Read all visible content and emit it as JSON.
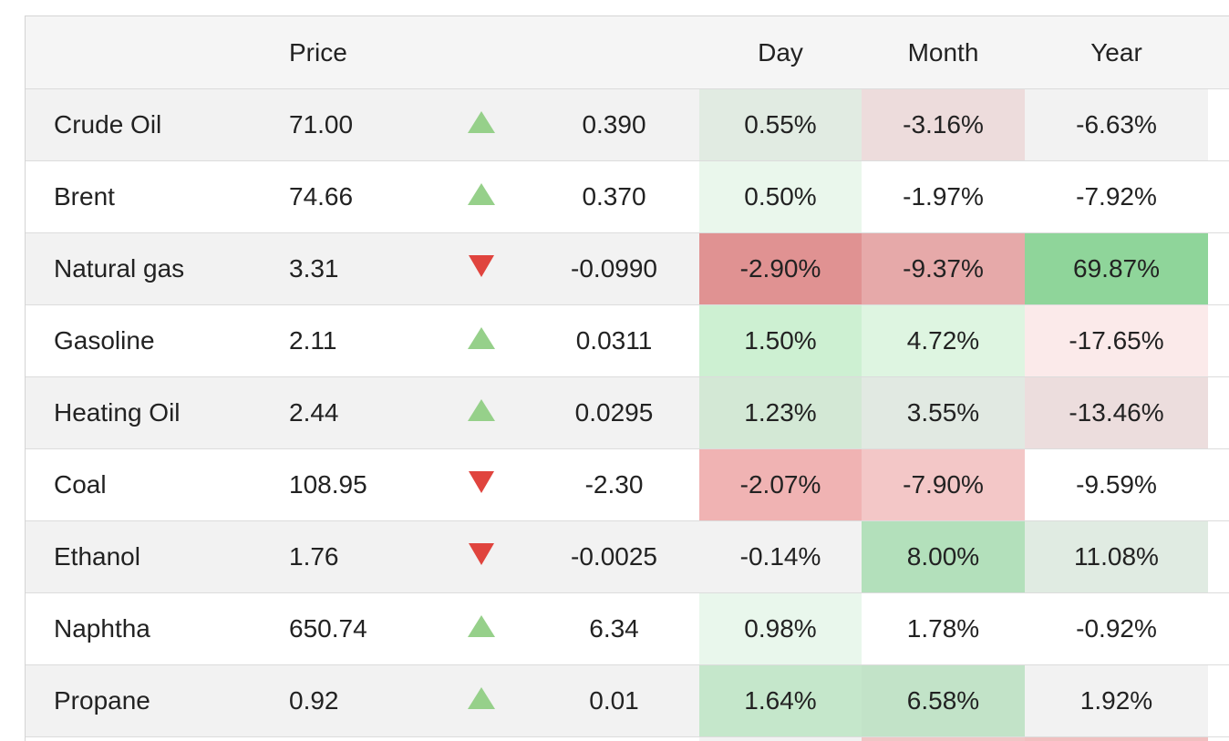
{
  "header": {
    "name": "",
    "price": "Price",
    "arrow": "",
    "change": "",
    "day": "Day",
    "month": "Month",
    "year": "Year"
  },
  "rows": [
    {
      "name": "Crude Oil",
      "price": "71.00",
      "direction": "up",
      "change": "0.390",
      "day": "0.55%",
      "month": "-3.16%",
      "year": "-6.63%",
      "day_bg": "#e1ebe2",
      "month_bg": "#eddcdc",
      "year_bg": "#f2f2f2"
    },
    {
      "name": "Brent",
      "price": "74.66",
      "direction": "up",
      "change": "0.370",
      "day": "0.50%",
      "month": "-1.97%",
      "year": "-7.92%",
      "day_bg": "#eaf7ec",
      "month_bg": "#ffffff",
      "year_bg": "#ffffff"
    },
    {
      "name": "Natural gas",
      "price": "3.31",
      "direction": "down",
      "change": "-0.0990",
      "day": "-2.90%",
      "month": "-9.37%",
      "year": "69.87%",
      "day_bg": "#e09292",
      "month_bg": "#e6a9a9",
      "year_bg": "#8fd59a"
    },
    {
      "name": "Gasoline",
      "price": "2.11",
      "direction": "up",
      "change": "0.0311",
      "day": "1.50%",
      "month": "4.72%",
      "year": "-17.65%",
      "day_bg": "#cdf0d2",
      "month_bg": "#def5e1",
      "year_bg": "#fbeaea"
    },
    {
      "name": "Heating Oil",
      "price": "2.44",
      "direction": "up",
      "change": "0.0295",
      "day": "1.23%",
      "month": "3.55%",
      "year": "-13.46%",
      "day_bg": "#d3e8d5",
      "month_bg": "#e1e9e2",
      "year_bg": "#ecdddd"
    },
    {
      "name": "Coal",
      "price": "108.95",
      "direction": "down",
      "change": "-2.30",
      "day": "-2.07%",
      "month": "-7.90%",
      "year": "-9.59%",
      "day_bg": "#f0b3b3",
      "month_bg": "#f3c7c7",
      "year_bg": "#ffffff"
    },
    {
      "name": "Ethanol",
      "price": "1.76",
      "direction": "down",
      "change": "-0.0025",
      "day": "-0.14%",
      "month": "8.00%",
      "year": "11.08%",
      "day_bg": "#f2f2f2",
      "month_bg": "#b3e0bb",
      "year_bg": "#e0ebe2"
    },
    {
      "name": "Naphtha",
      "price": "650.74",
      "direction": "up",
      "change": "6.34",
      "day": "0.98%",
      "month": "1.78%",
      "year": "-0.92%",
      "day_bg": "#e9f7ec",
      "month_bg": "#ffffff",
      "year_bg": "#ffffff"
    },
    {
      "name": "Propane",
      "price": "0.92",
      "direction": "up",
      "change": "0.01",
      "day": "1.64%",
      "month": "6.58%",
      "year": "1.92%",
      "day_bg": "#c5e7cb",
      "month_bg": "#c2e3c8",
      "year_bg": "#f2f2f2"
    }
  ],
  "partial_row": {
    "day_bg": "#f2f2f2",
    "month_bg": "#f0c6c6",
    "year_bg": "#f0c0c0"
  },
  "colors": {
    "up_arrow": "#96d08a",
    "down_arrow": "#e0443e"
  }
}
